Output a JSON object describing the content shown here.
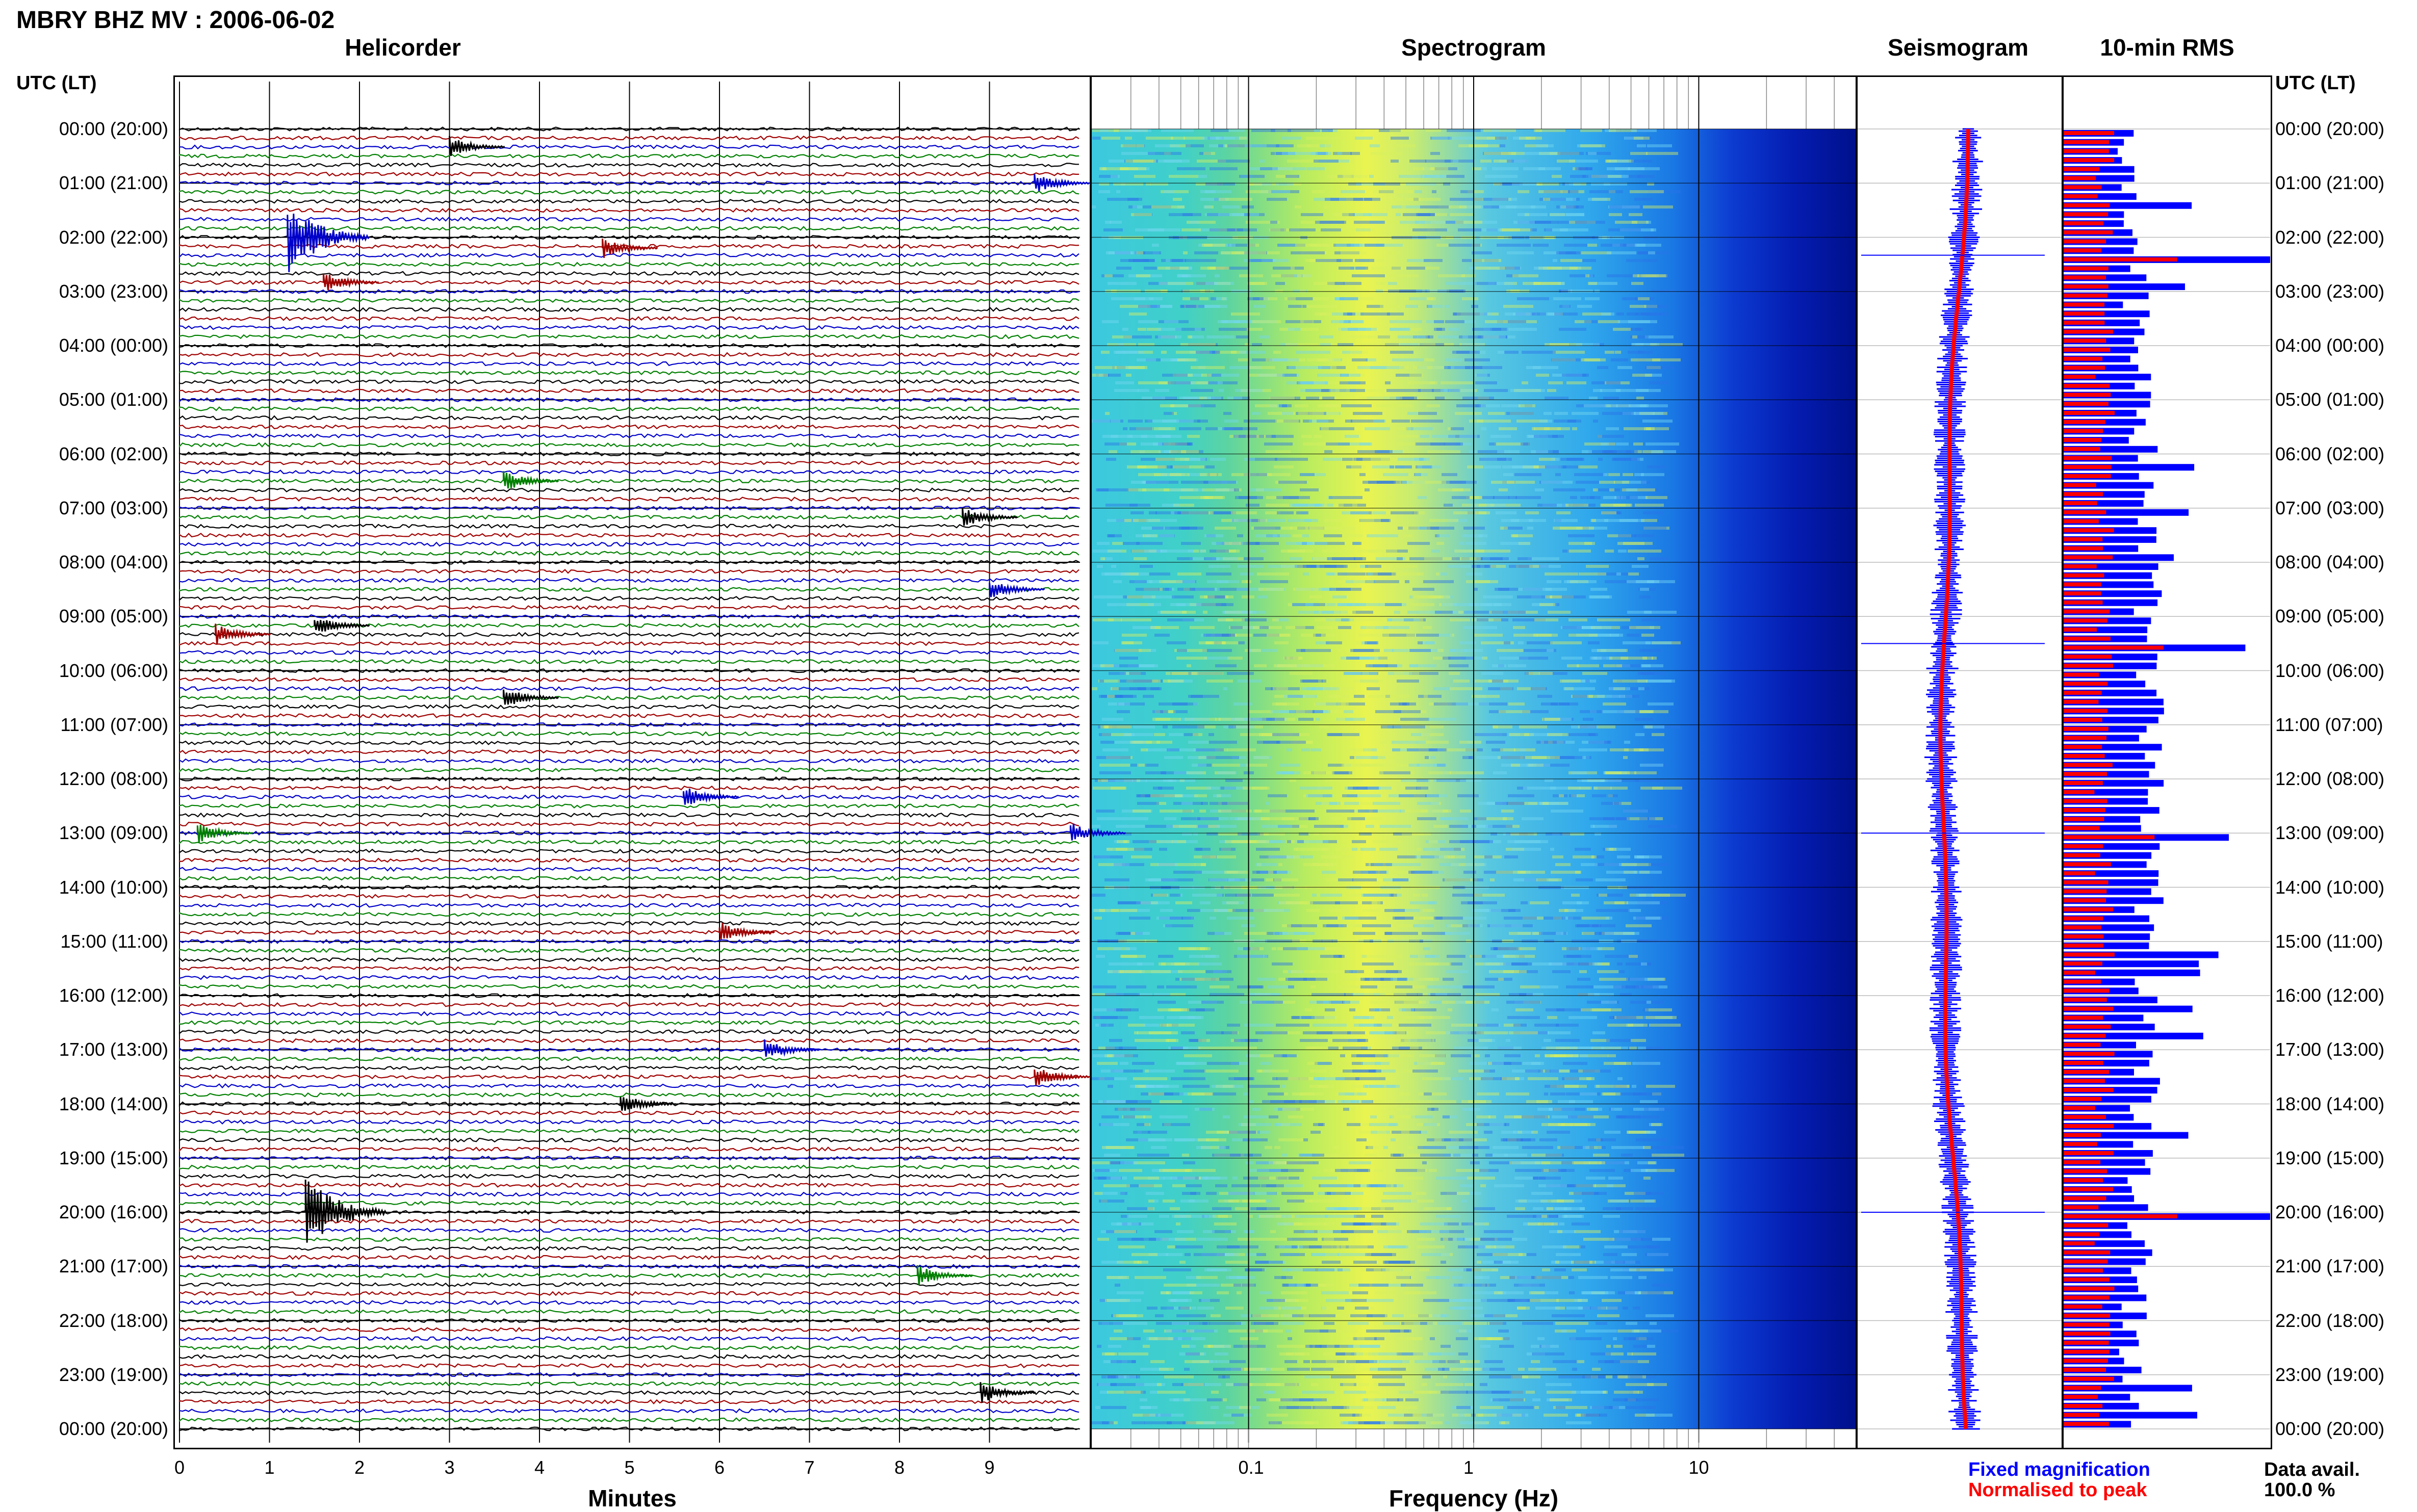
{
  "header": {
    "title": "MBRY BHZ MV : 2006-06-02",
    "left_axis_header": "UTC (LT)",
    "right_axis_header": "UTC (LT)"
  },
  "panels": {
    "helicorder_title": "Helicorder",
    "spectrogram_title": "Spectrogram",
    "seismogram_title": "Seismogram",
    "rms_title": "10-min RMS"
  },
  "time_labels": [
    "00:00 (20:00)",
    "01:00 (21:00)",
    "02:00 (22:00)",
    "03:00 (23:00)",
    "04:00 (00:00)",
    "05:00 (01:00)",
    "06:00 (02:00)",
    "07:00 (03:00)",
    "08:00 (04:00)",
    "09:00 (05:00)",
    "10:00 (06:00)",
    "11:00 (07:00)",
    "12:00 (08:00)",
    "13:00 (09:00)",
    "14:00 (10:00)",
    "15:00 (11:00)",
    "16:00 (12:00)",
    "17:00 (13:00)",
    "18:00 (14:00)",
    "19:00 (15:00)",
    "20:00 (16:00)",
    "21:00 (17:00)",
    "22:00 (18:00)",
    "23:00 (19:00)",
    "00:00 (20:00)"
  ],
  "legend": {
    "fixed_magnification": "Fixed magnification",
    "normalised_to_peak": "Normalised to peak",
    "data_avail_label": "Data avail.",
    "data_avail_value": "100.0 %"
  },
  "colors": {
    "trace_colors": [
      "#000000",
      "#a00000",
      "#0000cc",
      "#008000"
    ],
    "fixed_magnification": "#0000ff",
    "normalised_to_peak": "#ff0000"
  },
  "chart_data": [
    {
      "type": "line",
      "title": "Helicorder",
      "xlabel": "Minutes",
      "ylabel": "UTC (LT)",
      "x_ticks": [
        "0",
        "1",
        "2",
        "3",
        "4",
        "5",
        "6",
        "7",
        "8",
        "9"
      ],
      "xlim": [
        0,
        10
      ],
      "rows_per_hour": 6,
      "events": [
        {
          "hour": 0.33,
          "minute": 3.0,
          "color_index": 0
        },
        {
          "hour": 1.0,
          "minute": 9.5,
          "color_index": 2
        },
        {
          "hour": 2.0,
          "minute": 1.2,
          "color_index": 2
        },
        {
          "hour": 2.2,
          "minute": 4.7,
          "color_index": 1
        },
        {
          "hour": 2.83,
          "minute": 1.6,
          "color_index": 1
        },
        {
          "hour": 6.5,
          "minute": 3.6,
          "color_index": 3
        },
        {
          "hour": 7.17,
          "minute": 8.7,
          "color_index": 0
        },
        {
          "hour": 8.5,
          "minute": 9.0,
          "color_index": 2
        },
        {
          "hour": 9.33,
          "minute": 0.4,
          "color_index": 1
        },
        {
          "hour": 9.17,
          "minute": 1.5,
          "color_index": 0
        },
        {
          "hour": 10.5,
          "minute": 3.6,
          "color_index": 0
        },
        {
          "hour": 12.33,
          "minute": 5.6,
          "color_index": 2
        },
        {
          "hour": 13.0,
          "minute": 0.2,
          "color_index": 3
        },
        {
          "hour": 13.0,
          "minute": 9.9,
          "color_index": 2
        },
        {
          "hour": 14.83,
          "minute": 6.0,
          "color_index": 1
        },
        {
          "hour": 17.0,
          "minute": 6.5,
          "color_index": 2
        },
        {
          "hour": 17.5,
          "minute": 9.5,
          "color_index": 1
        },
        {
          "hour": 18.0,
          "minute": 4.9,
          "color_index": 0
        },
        {
          "hour": 20.0,
          "minute": 1.4,
          "color_index": 0
        },
        {
          "hour": 21.17,
          "minute": 8.2,
          "color_index": 3
        },
        {
          "hour": 23.33,
          "minute": 8.9,
          "color_index": 0
        }
      ]
    },
    {
      "type": "heatmap",
      "title": "Spectrogram",
      "xlabel": "Frequency (Hz)",
      "x_scale": "log",
      "x_ticks": [
        "0.1",
        "1",
        "10"
      ],
      "xlim": [
        0.02,
        50
      ],
      "ylabel": "UTC (LT)",
      "peak_frequency_hz": 0.4
    },
    {
      "type": "line",
      "title": "Seismogram",
      "series": [
        {
          "name": "Fixed magnification",
          "color": "#0000ff"
        },
        {
          "name": "Normalised to peak",
          "color": "#ff0000"
        }
      ]
    },
    {
      "type": "bar",
      "title": "10-min RMS",
      "series": [
        {
          "name": "Fixed magnification",
          "color": "#0000ff"
        },
        {
          "name": "Normalised to peak",
          "color": "#ff0000"
        }
      ],
      "spikes": [
        {
          "hour": 2.33,
          "relative": 1.0
        },
        {
          "hour": 9.5,
          "relative": 0.88
        },
        {
          "hour": 13.0,
          "relative": 0.8
        },
        {
          "hour": 20.0,
          "relative": 1.0
        }
      ]
    }
  ]
}
